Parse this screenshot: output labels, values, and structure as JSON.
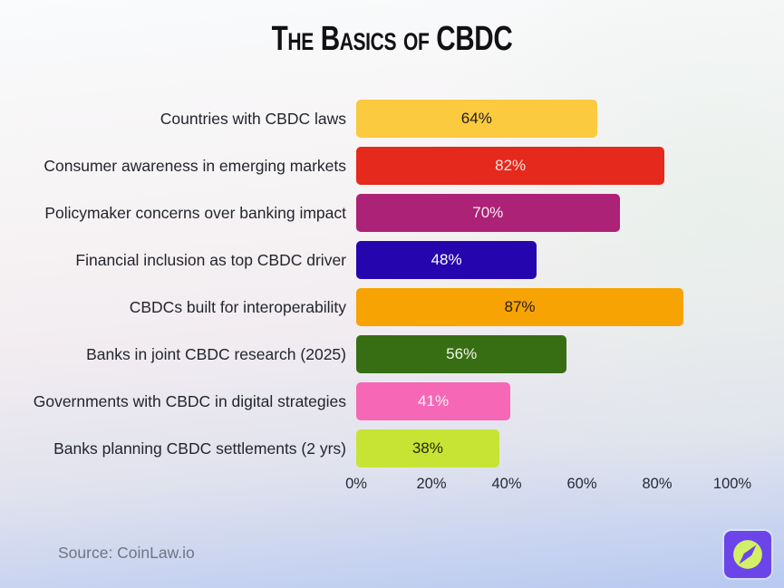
{
  "page": {
    "title": "The Basics of CBDC",
    "source_text": "Source: CoinLaw.io"
  },
  "logo": {
    "name": "coinlaw-compass-logo",
    "square_color": "#6b45e9",
    "circle_color": "#d2f066"
  },
  "chart_data": {
    "type": "bar",
    "orientation": "horizontal",
    "title": "The Basics of CBDC",
    "categories": [
      "Countries with CBDC laws",
      "Consumer awareness in emerging markets",
      "Policymaker concerns over banking impact",
      "Financial inclusion as top CBDC driver",
      "CBDCs built for interoperability",
      "Banks in joint CBDC research (2025)",
      "Governments with CBDC in digital strategies",
      "Banks planning CBDC settlements (2 yrs)"
    ],
    "values": [
      64,
      82,
      70,
      48,
      87,
      56,
      41,
      38
    ],
    "value_labels": [
      "64%",
      "82%",
      "70%",
      "48%",
      "87%",
      "56%",
      "41%",
      "38%"
    ],
    "bar_colors": [
      "#fbca3e",
      "#e5291d",
      "#ab2277",
      "#2506ae",
      "#f6a303",
      "#386e13",
      "#f668b6",
      "#c7e434"
    ],
    "value_text_colors": [
      "#1d1d1f",
      "#fbe3df",
      "#fce9f1",
      "#ffffff",
      "#2b1c03",
      "#eef5e9",
      "#fdeef7",
      "#232905"
    ],
    "xlabel": "",
    "ylabel": "",
    "xlim": [
      0,
      100
    ],
    "xticks": [
      0,
      20,
      40,
      60,
      80,
      100
    ],
    "xtick_labels": [
      "0%",
      "20%",
      "40%",
      "60%",
      "80%",
      "100%"
    ],
    "grid": false,
    "legend": false
  }
}
